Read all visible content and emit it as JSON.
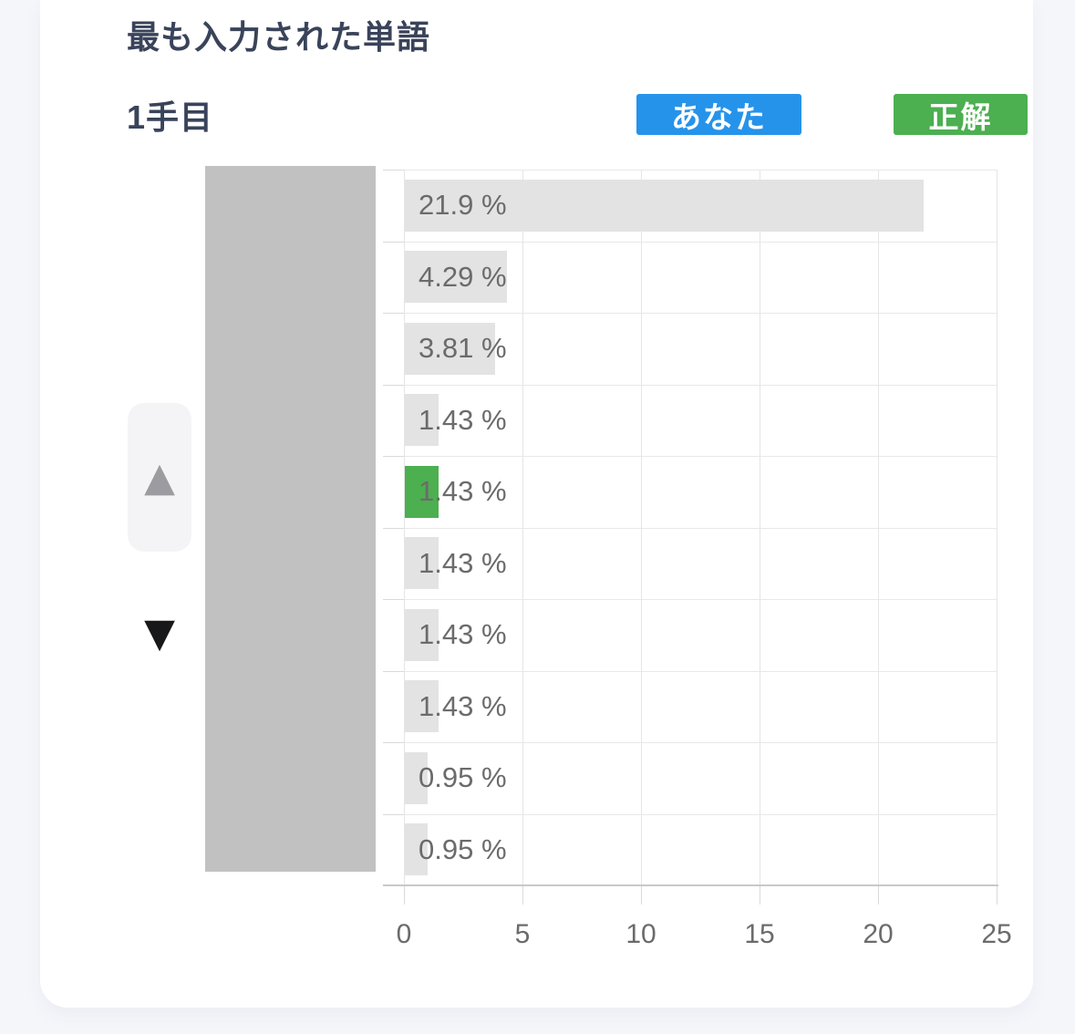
{
  "header": {
    "title": "最も入力された単語",
    "subtitle": "1手目"
  },
  "legend": {
    "you_label": "あなた",
    "you_color": "#2693EB",
    "correct_label": "正解",
    "correct_color": "#4CAF50"
  },
  "scroll": {
    "up_arrow_icon": "▲",
    "down_arrow_icon": "▼"
  },
  "chart_data": {
    "type": "bar",
    "orientation": "horizontal",
    "values": [
      21.9,
      4.29,
      3.81,
      1.43,
      1.43,
      1.43,
      1.43,
      1.43,
      0.95,
      0.95
    ],
    "value_labels": [
      "21.9 %",
      "4.29 %",
      "3.81 %",
      "1.43 %",
      "1.43 %",
      "1.43 %",
      "1.43 %",
      "1.43 %",
      "0.95 %",
      "0.95 %"
    ],
    "highlighted_index": 4,
    "highlight_color": "#4CAF50",
    "bar_color": "#E3E3E3",
    "x_ticks": [
      0,
      5,
      10,
      15,
      20,
      25
    ],
    "xlim": [
      0,
      25
    ],
    "xlabel": "",
    "ylabel": "",
    "grid": true,
    "category_labels_hidden": true,
    "legend_position": "top-right"
  }
}
